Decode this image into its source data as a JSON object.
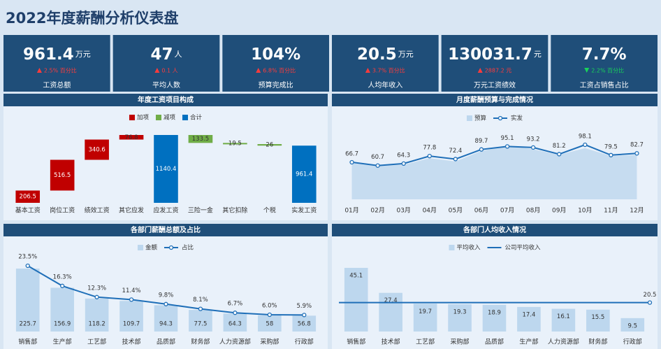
{
  "title": "2022年度薪酬分析仪表盘",
  "kpis": [
    {
      "value": "961.4",
      "unit": "万元",
      "change": "2.5% 百分比",
      "direction": "up",
      "label": "工资总额"
    },
    {
      "value": "47",
      "unit": "人",
      "change": "0.1 人",
      "direction": "up",
      "label": "平均人数"
    },
    {
      "value": "104%",
      "unit": "",
      "change": "6.8% 百分比",
      "direction": "up",
      "label": "预算完成比"
    },
    {
      "value": "20.5",
      "unit": "万元",
      "change": "3.7% 百分比",
      "direction": "up",
      "label": "人均年收入"
    },
    {
      "value": "130031.7",
      "unit": "元",
      "change": "2887.2 元",
      "direction": "up",
      "label": "万元工资绩效"
    },
    {
      "value": "7.7%",
      "unit": "",
      "change": "2.2% 百分比",
      "direction": "down",
      "label": "工资占销售占比"
    }
  ],
  "chart_data": [
    {
      "type": "waterfall",
      "title": "年度工资项目构成",
      "categories": [
        "基本工资",
        "岗位工资",
        "绩效工资",
        "其它应发",
        "应发工资",
        "三险一金",
        "其它扣除",
        "个税",
        "实发工资"
      ],
      "series": [
        {
          "name": "加项",
          "color": "#c00000",
          "kind": "increase",
          "values": [
            206.5,
            516.5,
            340.6,
            76.8,
            null,
            null,
            null,
            null,
            null
          ]
        },
        {
          "name": "减项",
          "color": "#70ad47",
          "kind": "decrease",
          "values": [
            null,
            null,
            null,
            null,
            null,
            133.5,
            19.5,
            26,
            null
          ]
        },
        {
          "name": "合计",
          "color": "#0070c0",
          "kind": "total",
          "values": [
            null,
            null,
            null,
            null,
            1140.4,
            null,
            null,
            null,
            961.4
          ]
        }
      ]
    },
    {
      "type": "area_line",
      "title": "月度薪酬预算与完成情况",
      "categories": [
        "01月",
        "02月",
        "03月",
        "04月",
        "05月",
        "06月",
        "07月",
        "08月",
        "09月",
        "10月",
        "11月",
        "12月"
      ],
      "series": [
        {
          "name": "预算",
          "color": "#bdd7ee",
          "values": [
            67,
            62,
            62,
            74,
            68,
            87,
            97,
            90,
            80,
            92,
            78,
            80
          ]
        },
        {
          "name": "实发",
          "color": "#1f6fb8",
          "values": [
            66.7,
            60.7,
            64.3,
            77.8,
            72.4,
            89.7,
            95.1,
            93.2,
            81.2,
            98.1,
            79.5,
            82.7
          ]
        }
      ]
    },
    {
      "type": "bar_line",
      "title": "各部门薪酬总额及占比",
      "categories": [
        "销售部",
        "生产部",
        "工艺部",
        "技术部",
        "品质部",
        "财务部",
        "人力资源部",
        "采购部",
        "行政部"
      ],
      "series": [
        {
          "name": "金额",
          "color": "#bdd7ee",
          "values": [
            225.7,
            156.9,
            118.2,
            109.7,
            94.3,
            77.5,
            64.3,
            58,
            56.8
          ]
        },
        {
          "name": "占比",
          "color": "#1f6fb8",
          "axis": "y2",
          "values": [
            23.5,
            16.3,
            12.3,
            11.4,
            9.8,
            8.1,
            6.7,
            6.0,
            5.9
          ],
          "value_labels": [
            "23.5%",
            "16.3%",
            "12.3%",
            "11.4%",
            "9.8%",
            "8.1%",
            "6.7%",
            "6.0%",
            "5.9%"
          ]
        }
      ]
    },
    {
      "type": "bar_average",
      "title": "各部门人均收入情况",
      "categories": [
        "销售部",
        "技术部",
        "工艺部",
        "采购部",
        "品质部",
        "生产部",
        "人力资源部",
        "财务部",
        "行政部"
      ],
      "series": [
        {
          "name": "平均收入",
          "color": "#bdd7ee",
          "values": [
            45.1,
            27.4,
            19.7,
            19.3,
            18.9,
            17.4,
            16.1,
            15.5,
            9.5
          ]
        }
      ],
      "average": {
        "name": "公司平均收入",
        "color": "#1f6fb8",
        "value": 20.5
      }
    }
  ]
}
